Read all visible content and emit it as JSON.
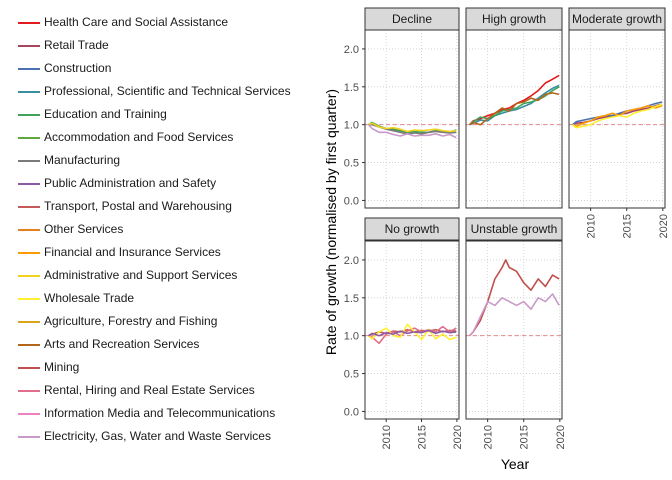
{
  "chart_data": {
    "type": "line",
    "xlabel": "Year",
    "ylabel": "Rate of growth (normalised by first quarter)",
    "x_ticks": [
      2010,
      2015,
      2020
    ],
    "y_ticks": [
      0.0,
      0.5,
      1.0,
      1.5,
      2.0
    ],
    "y_tick_labels": [
      "0.0",
      "0.5",
      "1.0",
      "1.5",
      "2.0"
    ],
    "xlim": [
      2007,
      2020.3
    ],
    "ylim": [
      -0.1,
      2.25
    ],
    "reference_line": 1.0,
    "grid": true,
    "legend_position": "left",
    "legend": [
      {
        "name": "Health Care and Social Assistance",
        "color": "#e41a1c"
      },
      {
        "name": "Retail Trade",
        "color": "#a6475e"
      },
      {
        "name": "Construction",
        "color": "#4a72b0"
      },
      {
        "name": "Professional, Scientific and Technical Services",
        "color": "#3a8f9e"
      },
      {
        "name": "Education and Training",
        "color": "#3fa35a"
      },
      {
        "name": "Accommodation and Food Services",
        "color": "#5fa840"
      },
      {
        "name": "Manufacturing",
        "color": "#7a7a7a"
      },
      {
        "name": "Public Administration and Safety",
        "color": "#8e5aa6"
      },
      {
        "name": "Transport, Postal and Warehousing",
        "color": "#c45a5a"
      },
      {
        "name": "Other Services",
        "color": "#e67e22"
      },
      {
        "name": "Financial and Insurance Services",
        "color": "#ff9a00"
      },
      {
        "name": "Administrative and Support Services",
        "color": "#f2d21c"
      },
      {
        "name": "Wholesale Trade",
        "color": "#fff033"
      },
      {
        "name": "Agriculture, Forestry and Fishing",
        "color": "#d9a51c"
      },
      {
        "name": "Arts and Recreation Services",
        "color": "#b4651c"
      },
      {
        "name": "Mining",
        "color": "#c0504d"
      },
      {
        "name": "Rental, Hiring and Real Estate Services",
        "color": "#e06e8c"
      },
      {
        "name": "Information Media and Telecommunications",
        "color": "#ee82c0"
      },
      {
        "name": "Electricity, Gas, Water and Waste Services",
        "color": "#c99ac9"
      }
    ],
    "panels": [
      {
        "label": "Decline",
        "show_y_ticks": true,
        "show_x_ticks": false,
        "series": [
          {
            "color": "#3fa35a",
            "x": [
              2007.5,
              2008,
              2009,
              2010,
              2011,
              2012,
              2013,
              2014,
              2015,
              2016,
              2017,
              2018,
              2019,
              2019.9
            ],
            "y": [
              1.0,
              1.03,
              0.98,
              0.95,
              0.94,
              0.92,
              0.9,
              0.91,
              0.9,
              0.9,
              0.92,
              0.91,
              0.9,
              0.93
            ]
          },
          {
            "color": "#7a7a7a",
            "x": [
              2007.5,
              2008,
              2009,
              2010,
              2011,
              2012,
              2013,
              2014,
              2015,
              2016,
              2017,
              2018,
              2019,
              2019.9
            ],
            "y": [
              1.0,
              1.0,
              0.97,
              0.94,
              0.92,
              0.9,
              0.88,
              0.89,
              0.88,
              0.9,
              0.91,
              0.9,
              0.89,
              0.9
            ]
          },
          {
            "color": "#f2d21c",
            "x": [
              2007.5,
              2008,
              2009,
              2010,
              2011,
              2012,
              2013,
              2014,
              2015,
              2016,
              2017,
              2018,
              2019,
              2019.9
            ],
            "y": [
              1.0,
              1.02,
              0.97,
              0.95,
              0.96,
              0.94,
              0.91,
              0.93,
              0.92,
              0.93,
              0.94,
              0.92,
              0.91,
              0.92
            ]
          },
          {
            "color": "#c99ac9",
            "x": [
              2007.5,
              2008,
              2009,
              2010,
              2011,
              2012,
              2013,
              2014,
              2015,
              2016,
              2017,
              2018,
              2019,
              2019.9
            ],
            "y": [
              1.0,
              0.95,
              0.9,
              0.9,
              0.87,
              0.85,
              0.88,
              0.85,
              0.86,
              0.86,
              0.88,
              0.85,
              0.87,
              0.83
            ]
          }
        ]
      },
      {
        "label": "High growth",
        "show_y_ticks": false,
        "show_x_ticks": false,
        "series": [
          {
            "color": "#e41a1c",
            "x": [
              2007.5,
              2008,
              2009,
              2010,
              2011,
              2012,
              2013,
              2014,
              2015,
              2016,
              2017,
              2018,
              2019,
              2019.9
            ],
            "y": [
              1.0,
              1.05,
              1.08,
              1.12,
              1.15,
              1.2,
              1.22,
              1.28,
              1.32,
              1.38,
              1.45,
              1.55,
              1.6,
              1.65
            ]
          },
          {
            "color": "#3a8f9e",
            "x": [
              2007.5,
              2008,
              2009,
              2010,
              2011,
              2012,
              2013,
              2014,
              2015,
              2016,
              2017,
              2018,
              2019,
              2019.9
            ],
            "y": [
              1.0,
              1.02,
              1.06,
              1.05,
              1.12,
              1.15,
              1.18,
              1.2,
              1.24,
              1.28,
              1.35,
              1.42,
              1.48,
              1.52
            ]
          },
          {
            "color": "#3fa35a",
            "x": [
              2007.5,
              2008,
              2009,
              2010,
              2011,
              2012,
              2013,
              2014,
              2015,
              2016,
              2017,
              2018,
              2019,
              2019.9
            ],
            "y": [
              1.0,
              1.04,
              1.1,
              1.08,
              1.12,
              1.18,
              1.2,
              1.22,
              1.28,
              1.3,
              1.33,
              1.38,
              1.45,
              1.5
            ]
          },
          {
            "color": "#b4651c",
            "x": [
              2007.5,
              2008,
              2009,
              2010,
              2011,
              2012,
              2013,
              2014,
              2015,
              2016,
              2017,
              2018,
              2019,
              2019.9
            ],
            "y": [
              1.0,
              1.03,
              1.0,
              1.08,
              1.15,
              1.22,
              1.18,
              1.28,
              1.3,
              1.35,
              1.32,
              1.4,
              1.42,
              1.4
            ]
          }
        ]
      },
      {
        "label": "Moderate growth",
        "show_y_ticks": false,
        "show_x_ticks": true,
        "series": [
          {
            "color": "#a6475e",
            "x": [
              2007.5,
              2008,
              2009,
              2010,
              2011,
              2012,
              2013,
              2014,
              2015,
              2016,
              2017,
              2018,
              2019,
              2019.9
            ],
            "y": [
              1.0,
              1.02,
              1.03,
              1.05,
              1.08,
              1.1,
              1.12,
              1.14,
              1.15,
              1.18,
              1.2,
              1.22,
              1.25,
              1.27
            ]
          },
          {
            "color": "#4a72b0",
            "x": [
              2007.5,
              2008,
              2009,
              2010,
              2011,
              2012,
              2013,
              2014,
              2015,
              2016,
              2017,
              2018,
              2019,
              2019.9
            ],
            "y": [
              1.0,
              1.04,
              1.06,
              1.08,
              1.1,
              1.12,
              1.12,
              1.15,
              1.18,
              1.2,
              1.22,
              1.25,
              1.28,
              1.3
            ]
          },
          {
            "color": "#ff9a00",
            "x": [
              2007.5,
              2008,
              2009,
              2010,
              2011,
              2012,
              2013,
              2014,
              2015,
              2016,
              2017,
              2018,
              2019,
              2019.9
            ],
            "y": [
              1.0,
              0.98,
              1.02,
              1.05,
              1.1,
              1.12,
              1.15,
              1.12,
              1.18,
              1.2,
              1.22,
              1.25,
              1.22,
              1.25
            ]
          },
          {
            "color": "#fff033",
            "x": [
              2007.5,
              2008,
              2009,
              2010,
              2011,
              2012,
              2013,
              2014,
              2015,
              2016,
              2017,
              2018,
              2019,
              2019.9
            ],
            "y": [
              1.0,
              0.96,
              0.98,
              1.0,
              1.05,
              1.08,
              1.1,
              1.12,
              1.1,
              1.15,
              1.18,
              1.2,
              1.24,
              1.27
            ]
          }
        ]
      },
      {
        "label": "No growth",
        "show_y_ticks": true,
        "show_x_ticks": true,
        "series": [
          {
            "color": "#c45a5a",
            "x": [
              2007.5,
              2008,
              2009,
              2010,
              2011,
              2012,
              2013,
              2014,
              2015,
              2016,
              2017,
              2018,
              2019,
              2019.9
            ],
            "y": [
              1.0,
              1.02,
              1.05,
              1.03,
              1.06,
              1.05,
              1.08,
              1.05,
              1.07,
              1.06,
              1.08,
              1.05,
              1.07,
              1.06
            ]
          },
          {
            "color": "#e06e8c",
            "x": [
              2007.5,
              2008,
              2009,
              2010,
              2011,
              2012,
              2013,
              2014,
              2015,
              2016,
              2017,
              2018,
              2019,
              2019.9
            ],
            "y": [
              1.0,
              0.98,
              0.9,
              1.02,
              1.05,
              1.0,
              1.06,
              1.1,
              1.05,
              1.08,
              1.05,
              1.12,
              1.05,
              1.1
            ]
          },
          {
            "color": "#fff033",
            "x": [
              2007.5,
              2008,
              2009,
              2010,
              2011,
              2012,
              2013,
              2014,
              2015,
              2016,
              2017,
              2018,
              2019,
              2019.9
            ],
            "y": [
              1.0,
              0.96,
              1.05,
              1.1,
              1.0,
              0.98,
              1.15,
              1.05,
              0.95,
              1.08,
              0.96,
              1.02,
              0.95,
              0.98
            ]
          },
          {
            "color": "#8e5aa6",
            "x": [
              2007.5,
              2008,
              2009,
              2010,
              2011,
              2012,
              2013,
              2014,
              2015,
              2016,
              2017,
              2018,
              2019,
              2019.9
            ],
            "y": [
              1.0,
              1.03,
              1.0,
              1.04,
              1.02,
              1.06,
              1.03,
              1.05,
              1.04,
              1.07,
              1.03,
              1.06,
              1.04,
              1.05
            ]
          }
        ]
      },
      {
        "label": "Unstable growth",
        "show_y_ticks": false,
        "show_x_ticks": true,
        "series": [
          {
            "color": "#c0504d",
            "x": [
              2007.5,
              2008,
              2009,
              2010,
              2011,
              2012,
              2012.5,
              2013,
              2014,
              2015,
              2016,
              2017,
              2018,
              2019,
              2019.9
            ],
            "y": [
              1.0,
              1.05,
              1.2,
              1.45,
              1.75,
              1.9,
              2.0,
              1.9,
              1.85,
              1.7,
              1.6,
              1.75,
              1.65,
              1.8,
              1.75
            ]
          },
          {
            "color": "#c99ac9",
            "x": [
              2007.5,
              2008,
              2009,
              2010,
              2011,
              2012,
              2013,
              2014,
              2015,
              2016,
              2017,
              2018,
              2019,
              2019.9
            ],
            "y": [
              1.0,
              1.05,
              1.25,
              1.45,
              1.4,
              1.5,
              1.45,
              1.4,
              1.45,
              1.35,
              1.5,
              1.45,
              1.55,
              1.4
            ]
          }
        ]
      }
    ]
  }
}
